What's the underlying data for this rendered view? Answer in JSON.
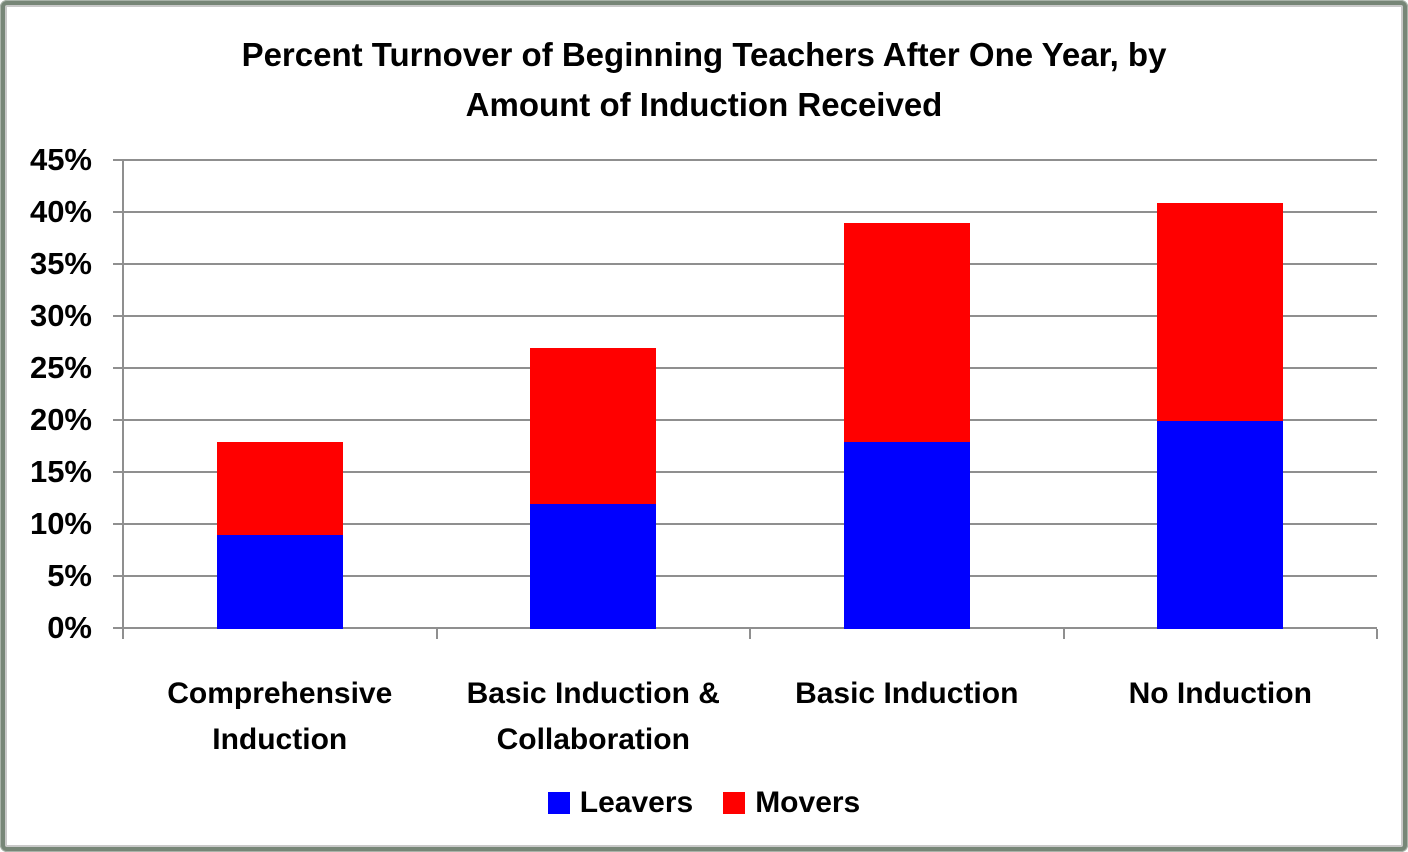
{
  "title": {
    "display": "Percent Turnover of Beginning Teachers After One Year, by\nAmount of Induction Received"
  },
  "chart_data": {
    "type": "bar",
    "stacked": true,
    "title": "Percent Turnover of Beginning Teachers After One Year, by Amount of Induction Received",
    "categories": [
      "Comprehensive Induction",
      "Basic Induction & Collaboration",
      "Basic Induction",
      "No Induction"
    ],
    "series": [
      {
        "name": "Leavers",
        "color": "#0000ff",
        "values": [
          9,
          12,
          18,
          20
        ]
      },
      {
        "name": "Movers",
        "color": "#ff0000",
        "values": [
          9,
          15,
          21,
          21
        ]
      }
    ],
    "stack_totals": [
      18,
      27,
      39,
      41
    ],
    "unit": "%",
    "ylim": [
      0,
      45
    ],
    "ytick_step": 5,
    "ytick_labels": [
      "0%",
      "5%",
      "10%",
      "15%",
      "20%",
      "25%",
      "30%",
      "35%",
      "40%",
      "45%"
    ],
    "xlabel": "",
    "ylabel": "",
    "grid": true,
    "legend_position": "bottom"
  },
  "colors": {
    "gridline": "#8f8f8f",
    "axis": "#8f8f8f",
    "text": "#000000",
    "background": "#ffffff",
    "frame_border": "#778677"
  }
}
